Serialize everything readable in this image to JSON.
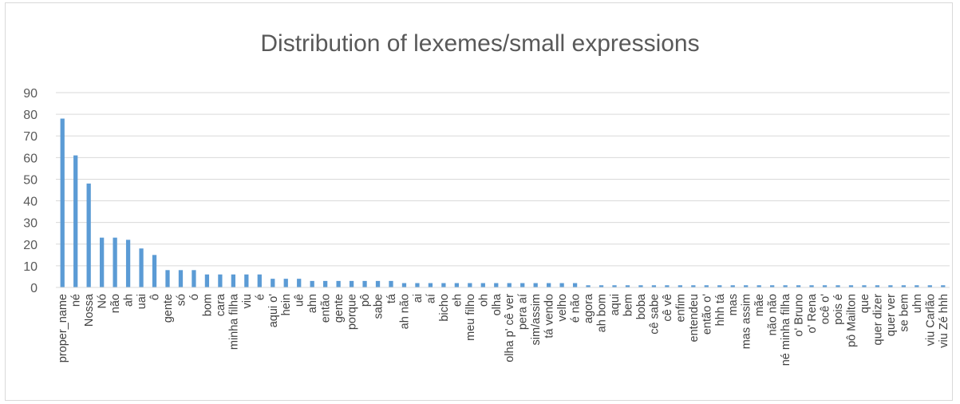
{
  "chart_data": {
    "type": "bar",
    "title": "Distribution of lexemes/small expressions",
    "xlabel": "",
    "ylabel": "",
    "ylim": [
      0,
      90
    ],
    "yticks": [
      "0",
      "10",
      "20",
      "30",
      "40",
      "50",
      "60",
      "70",
      "80",
      "90"
    ],
    "grid": "horizontal",
    "bar_color": "#5b9bd5",
    "categories": [
      "proper_name",
      "né",
      "Nossa",
      "Nó",
      "não",
      "ah",
      "uai",
      "ô",
      "gente",
      "só",
      "ó",
      "bom",
      "cara",
      "minha filha",
      "viu",
      "é",
      "aqui o'",
      "hein",
      "uê",
      "ahn",
      "então",
      "gente",
      "porque",
      "pô",
      "sabe",
      "tá",
      "ah não",
      "ai",
      "aí",
      "bicho",
      "eh",
      "meu filho",
      "oh",
      "olha",
      "olha p' cê ver",
      "pera aí",
      "sim/assim",
      "tá vendo",
      "velho",
      "é não",
      "agora",
      "ah bom",
      "aqui",
      "bem",
      "boba",
      "cê sabe",
      "cê vê",
      "enfim",
      "entendeu",
      "então o'",
      "hhh tá",
      "mas",
      "mas assim",
      "mãe",
      "não não",
      "né minha filha",
      "o' Bruno",
      "o' Rena",
      "ocê o'",
      "pois é",
      "pô Mailton",
      "que",
      "quer dizer",
      "quer ver",
      "se bem",
      "uhn",
      "viu Carlão",
      "viu Zé hhh"
    ],
    "values": [
      78,
      61,
      48,
      23,
      23,
      22,
      18,
      15,
      8,
      8,
      8,
      6,
      6,
      6,
      6,
      6,
      4,
      4,
      4,
      3,
      3,
      3,
      3,
      3,
      3,
      3,
      2,
      2,
      2,
      2,
      2,
      2,
      2,
      2,
      2,
      2,
      2,
      2,
      2,
      2,
      1,
      1,
      1,
      1,
      1,
      1,
      1,
      1,
      1,
      1,
      1,
      1,
      1,
      1,
      1,
      1,
      1,
      1,
      1,
      1,
      1,
      1,
      1,
      1,
      1,
      1,
      1,
      1
    ]
  }
}
